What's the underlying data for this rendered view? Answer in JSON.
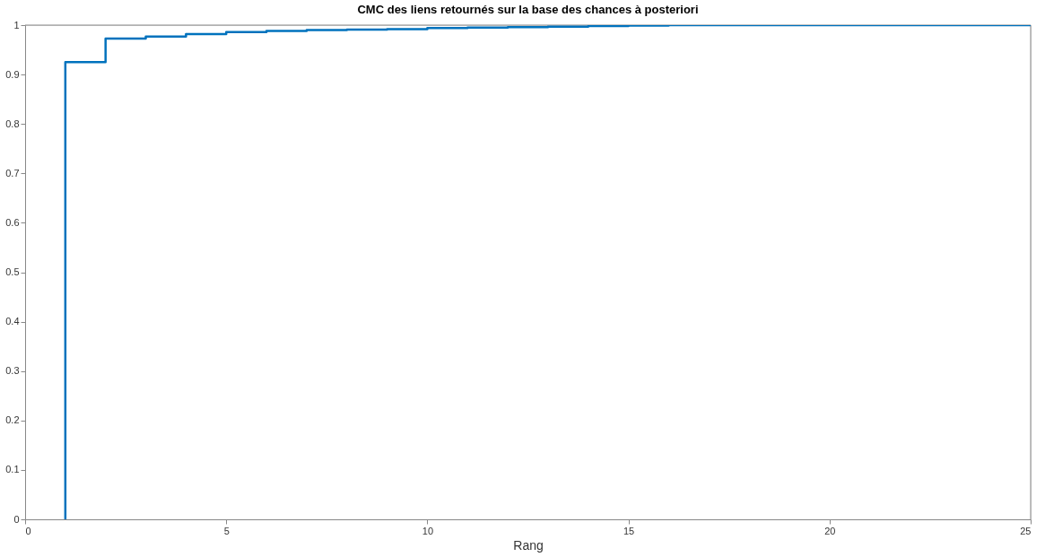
{
  "chart_data": {
    "type": "step",
    "title": "CMC des liens retournés sur la base des chances à posteriori",
    "xlabel": "Rang",
    "series": [
      {
        "color": "#0072bd",
        "x": [
          1,
          1,
          2,
          3,
          4,
          5,
          6,
          7,
          8,
          9,
          10,
          11,
          12,
          13,
          14,
          15,
          16,
          17,
          18,
          19,
          20,
          21,
          22,
          23,
          24,
          25
        ],
        "values": [
          0,
          0.925,
          0.973,
          0.977,
          0.982,
          0.986,
          0.988,
          0.99,
          0.991,
          0.992,
          0.994,
          0.995,
          0.996,
          0.997,
          0.998,
          0.999,
          1,
          1,
          1,
          1,
          1,
          1,
          1,
          1,
          1,
          1
        ]
      }
    ],
    "xlim": [
      0,
      25
    ],
    "xticks": [
      0,
      5,
      10,
      15,
      20,
      25
    ],
    "ylim": [
      0,
      1
    ],
    "yticks": [
      0,
      0.1,
      0.2,
      0.3,
      0.4,
      0.5,
      0.6,
      0.7,
      0.8,
      0.9,
      1
    ],
    "grid": false,
    "marker": "none",
    "line_style": "solid"
  }
}
